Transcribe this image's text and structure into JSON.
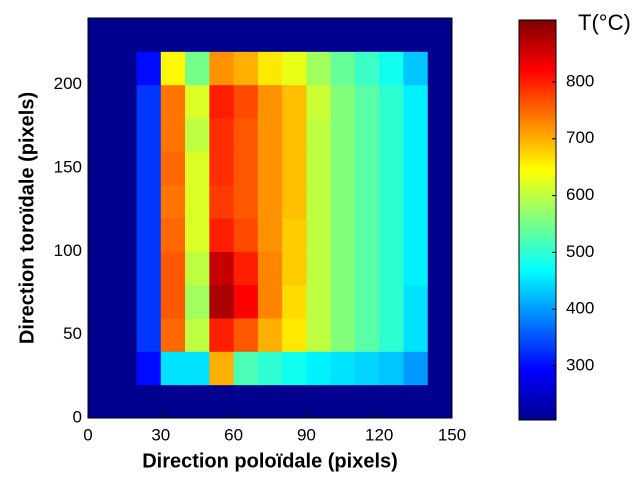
{
  "chart_data": {
    "type": "heatmap",
    "xlabel": "Direction poloïdale (pixels)",
    "ylabel": "Direction toroïdale (pixels)",
    "colorbar_label": "T(°C)",
    "colormap": "jet",
    "x_edges": [
      0,
      10,
      20,
      30,
      40,
      50,
      60,
      70,
      80,
      90,
      100,
      110,
      120,
      130,
      140,
      150
    ],
    "y_edges": [
      0,
      20,
      40,
      60,
      80,
      100,
      120,
      140,
      160,
      180,
      200,
      220,
      240
    ],
    "z": [
      [
        215,
        215,
        215,
        215,
        215,
        215,
        215,
        215,
        215,
        215,
        215,
        215,
        215,
        215,
        215
      ],
      [
        215,
        215,
        300,
        450,
        450,
        700,
        520,
        500,
        480,
        460,
        450,
        440,
        430,
        400,
        215
      ],
      [
        215,
        215,
        330,
        750,
        600,
        800,
        760,
        700,
        660,
        600,
        560,
        530,
        500,
        450,
        215
      ],
      [
        215,
        215,
        330,
        760,
        580,
        880,
        820,
        730,
        670,
        600,
        560,
        530,
        500,
        450,
        215
      ],
      [
        215,
        215,
        330,
        760,
        600,
        860,
        800,
        730,
        680,
        600,
        560,
        530,
        500,
        460,
        215
      ],
      [
        215,
        215,
        330,
        750,
        620,
        800,
        770,
        720,
        680,
        600,
        560,
        530,
        500,
        460,
        215
      ],
      [
        215,
        215,
        330,
        740,
        620,
        780,
        760,
        720,
        690,
        600,
        560,
        530,
        500,
        460,
        215
      ],
      [
        215,
        215,
        330,
        750,
        620,
        790,
        760,
        720,
        690,
        600,
        560,
        530,
        500,
        460,
        215
      ],
      [
        215,
        215,
        330,
        740,
        600,
        790,
        760,
        720,
        690,
        600,
        560,
        530,
        500,
        460,
        215
      ],
      [
        215,
        215,
        330,
        740,
        620,
        800,
        770,
        720,
        690,
        610,
        560,
        530,
        500,
        460,
        215
      ],
      [
        215,
        215,
        300,
        650,
        550,
        720,
        700,
        660,
        630,
        580,
        540,
        510,
        480,
        430,
        215
      ],
      [
        215,
        215,
        215,
        215,
        215,
        215,
        215,
        215,
        215,
        215,
        215,
        215,
        215,
        215,
        215
      ]
    ],
    "xlim": [
      0,
      150
    ],
    "xticks": [
      0,
      30,
      60,
      90,
      120,
      150
    ],
    "ylim": [
      0,
      240
    ],
    "yticks": [
      0,
      50,
      100,
      150,
      200
    ],
    "clim": [
      205,
      909
    ],
    "cticks": [
      300,
      400,
      500,
      600,
      700,
      800
    ]
  }
}
